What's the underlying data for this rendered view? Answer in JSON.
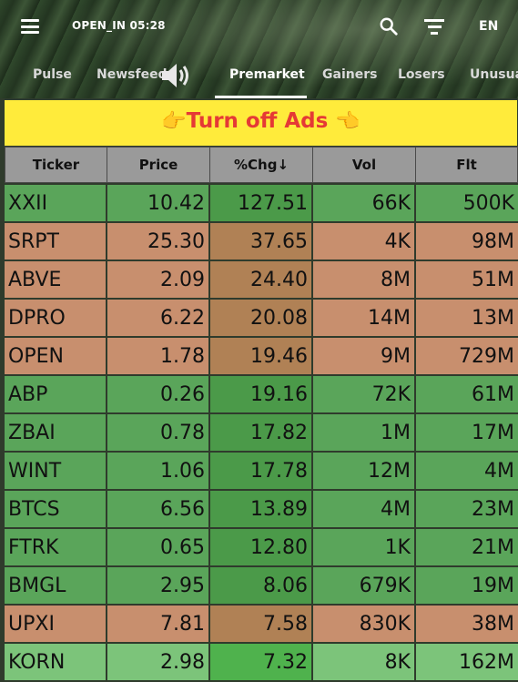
{
  "header": {
    "status": "OPEN_IN 05:28",
    "lang": "EN",
    "tabs": [
      {
        "label": "Pulse"
      },
      {
        "label": "Newsfeed"
      },
      {
        "label": "Premarket"
      },
      {
        "label": "Gainers"
      },
      {
        "label": "Losers"
      },
      {
        "label": "Unusual"
      }
    ],
    "active_tab": "Premarket"
  },
  "ad": {
    "left_emoji": "👉",
    "text": "Turn off Ads",
    "right_emoji": "👈"
  },
  "table": {
    "columns": [
      "Ticker",
      "Price",
      "%Chg↓",
      "Vol",
      "Flt"
    ],
    "rows": [
      {
        "ticker": "XXII",
        "price": "10.42",
        "chg": "127.51",
        "vol": "66K",
        "flt": "500K",
        "color": "green"
      },
      {
        "ticker": "SRPT",
        "price": "25.30",
        "chg": "37.65",
        "vol": "4K",
        "flt": "98M",
        "color": "orange"
      },
      {
        "ticker": "ABVE",
        "price": "2.09",
        "chg": "24.40",
        "vol": "8M",
        "flt": "51M",
        "color": "orange"
      },
      {
        "ticker": "DPRO",
        "price": "6.22",
        "chg": "20.08",
        "vol": "14M",
        "flt": "13M",
        "color": "orange"
      },
      {
        "ticker": "OPEN",
        "price": "1.78",
        "chg": "19.46",
        "vol": "9M",
        "flt": "729M",
        "color": "orange"
      },
      {
        "ticker": "ABP",
        "price": "0.26",
        "chg": "19.16",
        "vol": "72K",
        "flt": "61M",
        "color": "green"
      },
      {
        "ticker": "ZBAI",
        "price": "0.78",
        "chg": "17.82",
        "vol": "1M",
        "flt": "17M",
        "color": "green"
      },
      {
        "ticker": "WINT",
        "price": "1.06",
        "chg": "17.78",
        "vol": "12M",
        "flt": "4M",
        "color": "green"
      },
      {
        "ticker": "BTCS",
        "price": "6.56",
        "chg": "13.89",
        "vol": "4M",
        "flt": "23M",
        "color": "green"
      },
      {
        "ticker": "FTRK",
        "price": "0.65",
        "chg": "12.80",
        "vol": "1K",
        "flt": "21M",
        "color": "green"
      },
      {
        "ticker": "BMGL",
        "price": "2.95",
        "chg": "8.06",
        "vol": "679K",
        "flt": "19M",
        "color": "green"
      },
      {
        "ticker": "UPXI",
        "price": "7.81",
        "chg": "7.58",
        "vol": "830K",
        "flt": "38M",
        "color": "orange"
      },
      {
        "ticker": "KORN",
        "price": "2.98",
        "chg": "7.32",
        "vol": "8K",
        "flt": "162M",
        "color": "lightgreen"
      }
    ]
  }
}
